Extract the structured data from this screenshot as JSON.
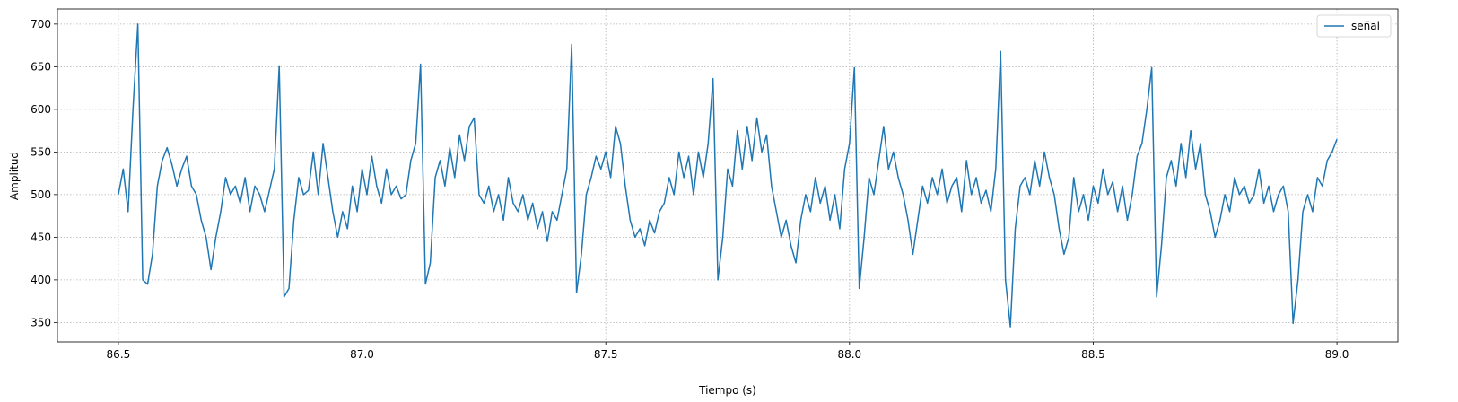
{
  "chart_data": {
    "type": "line",
    "xlabel": "Tiempo (s)",
    "ylabel": "Amplitud",
    "x": [
      86.5,
      86.51,
      86.52,
      86.53,
      86.54,
      86.55,
      86.56,
      86.57,
      86.58,
      86.59,
      86.6,
      86.61,
      86.62,
      86.63,
      86.64,
      86.65,
      86.66,
      86.67,
      86.68,
      86.69,
      86.7,
      86.71,
      86.72,
      86.73,
      86.74,
      86.75,
      86.76,
      86.77,
      86.78,
      86.79,
      86.8,
      86.81,
      86.82,
      86.83,
      86.84,
      86.85,
      86.86,
      86.87,
      86.88,
      86.89,
      86.9,
      86.91,
      86.92,
      86.93,
      86.94,
      86.95,
      86.96,
      86.97,
      86.98,
      86.99,
      87.0,
      87.01,
      87.02,
      87.03,
      87.04,
      87.05,
      87.06,
      87.07,
      87.08,
      87.09,
      87.1,
      87.11,
      87.12,
      87.13,
      87.14,
      87.15,
      87.16,
      87.17,
      87.18,
      87.19,
      87.2,
      87.21,
      87.22,
      87.23,
      87.24,
      87.25,
      87.26,
      87.27,
      87.28,
      87.29,
      87.3,
      87.31,
      87.32,
      87.33,
      87.34,
      87.35,
      87.36,
      87.37,
      87.38,
      87.39,
      87.4,
      87.41,
      87.42,
      87.43,
      87.44,
      87.45,
      87.46,
      87.47,
      87.48,
      87.49,
      87.5,
      87.51,
      87.52,
      87.53,
      87.54,
      87.55,
      87.56,
      87.57,
      87.58,
      87.59,
      87.6,
      87.61,
      87.62,
      87.63,
      87.64,
      87.65,
      87.66,
      87.67,
      87.68,
      87.69,
      87.7,
      87.71,
      87.72,
      87.73,
      87.74,
      87.75,
      87.76,
      87.77,
      87.78,
      87.79,
      87.8,
      87.81,
      87.82,
      87.83,
      87.84,
      87.85,
      87.86,
      87.87,
      87.88,
      87.89,
      87.9,
      87.91,
      87.92,
      87.93,
      87.94,
      87.95,
      87.96,
      87.97,
      87.98,
      87.99,
      88.0,
      88.01,
      88.02,
      88.03,
      88.04,
      88.05,
      88.06,
      88.07,
      88.08,
      88.09,
      88.1,
      88.11,
      88.12,
      88.13,
      88.14,
      88.15,
      88.16,
      88.17,
      88.18,
      88.19,
      88.2,
      88.21,
      88.22,
      88.23,
      88.24,
      88.25,
      88.26,
      88.27,
      88.28,
      88.29,
      88.3,
      88.31,
      88.32,
      88.33,
      88.34,
      88.35,
      88.36,
      88.37,
      88.38,
      88.39,
      88.4,
      88.41,
      88.42,
      88.43,
      88.44,
      88.45,
      88.46,
      88.47,
      88.48,
      88.49,
      88.5,
      88.51,
      88.52,
      88.53,
      88.54,
      88.55,
      88.56,
      88.57,
      88.58,
      88.59,
      88.6,
      88.61,
      88.62,
      88.63,
      88.64,
      88.65,
      88.66,
      88.67,
      88.68,
      88.69,
      88.7,
      88.71,
      88.72,
      88.73,
      88.74,
      88.75,
      88.76,
      88.77,
      88.78,
      88.79,
      88.8,
      88.81,
      88.82,
      88.83,
      88.84,
      88.85,
      88.86,
      88.87,
      88.88,
      88.89,
      88.9,
      88.91,
      88.92,
      88.93,
      88.94,
      88.95,
      88.96,
      88.97,
      88.98,
      88.99,
      89.0
    ],
    "series": [
      {
        "name": "señal",
        "color": "#1f77b4",
        "values": [
          500,
          530,
          480,
          600,
          700,
          400,
          395,
          430,
          510,
          540,
          555,
          535,
          510,
          530,
          545,
          510,
          500,
          470,
          450,
          412,
          450,
          480,
          520,
          500,
          510,
          490,
          520,
          480,
          510,
          500,
          480,
          505,
          530,
          651,
          380,
          390,
          470,
          520,
          500,
          505,
          550,
          500,
          560,
          520,
          480,
          450,
          480,
          460,
          510,
          480,
          530,
          500,
          545,
          510,
          490,
          530,
          500,
          510,
          495,
          500,
          540,
          560,
          653,
          395,
          420,
          520,
          540,
          510,
          555,
          520,
          570,
          540,
          580,
          590,
          500,
          490,
          510,
          480,
          500,
          470,
          520,
          490,
          480,
          500,
          470,
          490,
          460,
          480,
          445,
          480,
          470,
          500,
          530,
          676,
          385,
          430,
          500,
          520,
          545,
          530,
          550,
          520,
          580,
          560,
          510,
          470,
          450,
          460,
          440,
          470,
          455,
          480,
          490,
          520,
          500,
          550,
          520,
          545,
          500,
          550,
          520,
          560,
          636,
          400,
          450,
          530,
          510,
          575,
          530,
          580,
          540,
          590,
          550,
          570,
          510,
          480,
          450,
          470,
          440,
          420,
          470,
          500,
          480,
          520,
          490,
          510,
          470,
          500,
          460,
          530,
          560,
          649,
          390,
          450,
          520,
          500,
          540,
          580,
          530,
          550,
          520,
          500,
          470,
          430,
          470,
          510,
          490,
          520,
          500,
          530,
          490,
          510,
          520,
          480,
          540,
          500,
          520,
          490,
          505,
          480,
          530,
          668,
          400,
          345,
          460,
          510,
          520,
          500,
          540,
          510,
          550,
          520,
          500,
          460,
          430,
          450,
          520,
          480,
          500,
          470,
          510,
          490,
          530,
          500,
          515,
          480,
          510,
          470,
          500,
          545,
          560,
          600,
          649,
          380,
          440,
          520,
          540,
          510,
          560,
          520,
          575,
          530,
          560,
          500,
          480,
          450,
          470,
          500,
          480,
          520,
          500,
          510,
          490,
          500,
          530,
          490,
          510,
          480,
          500,
          510,
          480,
          349,
          400,
          480,
          500,
          480,
          520,
          510,
          540,
          550,
          565
        ]
      }
    ],
    "xlim": [
      86.375,
      89.125
    ],
    "ylim": [
      327.25,
      717.75
    ],
    "xticks": [
      86.5,
      {
        "value": 87,
        "label": "87.0"
      },
      87.5,
      {
        "value": 88,
        "label": "88.0"
      },
      88.5,
      {
        "value": 89,
        "label": "89.0"
      }
    ],
    "yticks": [
      350,
      400,
      450,
      500,
      550,
      600,
      650,
      700
    ],
    "grid": true,
    "legend": "upper right"
  }
}
